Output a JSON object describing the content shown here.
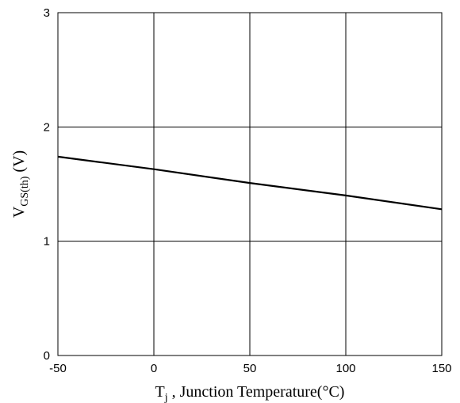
{
  "chart_data": {
    "type": "line",
    "title": "",
    "xlabel": {
      "symbol": "T",
      "subscript": "j",
      "text": " , Junction Temperature(°C)"
    },
    "ylabel": {
      "symbol": "V",
      "subscript": "GS(th)",
      "unit": " (V)"
    },
    "xlim": [
      -50,
      150
    ],
    "ylim": [
      0,
      3
    ],
    "xticks": [
      -50,
      0,
      50,
      100,
      150
    ],
    "yticks": [
      0,
      1,
      2,
      3
    ],
    "xtick_labels": [
      "-50",
      "0",
      "50",
      "100",
      "150"
    ],
    "ytick_labels": [
      "0",
      "1",
      "2",
      "3"
    ],
    "grid": true,
    "legend": "none",
    "series": [
      {
        "x": [
          -50,
          0,
          50,
          100,
          150
        ],
        "y": [
          1.74,
          1.63,
          1.51,
          1.4,
          1.28
        ],
        "color": "#000000"
      }
    ]
  }
}
